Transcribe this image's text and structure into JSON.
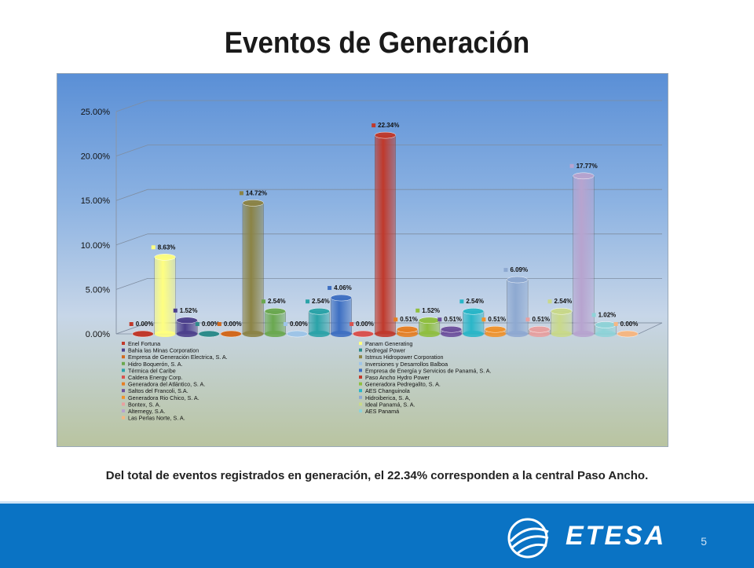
{
  "slide": {
    "title": "Eventos de Generación",
    "caption": "Del total de eventos registrados en generación, el 22.34% corresponden a la central Paso Ancho.",
    "page_number": "5",
    "logo_text": "ETESA"
  },
  "chart_data": {
    "type": "bar",
    "ylim": [
      0,
      25
    ],
    "y_ticks": [
      "0.00%",
      "5.00%",
      "10.00%",
      "15.00%",
      "20.00%",
      "25.00%"
    ],
    "grid": true,
    "legend_position": "bottom",
    "series": [
      {
        "name": "Enel Fortuna",
        "value": 0.0,
        "label": "0.00%",
        "color": "#c0392b"
      },
      {
        "name": "Panam Generating",
        "value": 8.63,
        "label": "8.63%",
        "color": "#ffff80"
      },
      {
        "name": "Bahia las Minas Corporation",
        "value": 1.52,
        "label": "1.52%",
        "color": "#4b3f8c"
      },
      {
        "name": "Pedregal Power",
        "value": 0.0,
        "label": "0.00%",
        "color": "#2e8b8b"
      },
      {
        "name": "Empresa de Generación Electrica, S. A.",
        "value": 0.0,
        "label": "0.00%",
        "color": "#d2691e"
      },
      {
        "name": "Istmus Hidropower Corporation",
        "value": 14.72,
        "label": "14.72%",
        "color": "#8b8345"
      },
      {
        "name": "Hidro Boquerón, S. A.",
        "value": 2.54,
        "label": "2.54%",
        "color": "#6aa84f"
      },
      {
        "name": "Inversiones y Desarrollos Balboa",
        "value": 0.0,
        "label": "0.00%",
        "color": "#9fc5e8"
      },
      {
        "name": "Térmica del Caribe",
        "value": 2.54,
        "label": "2.54%",
        "color": "#2aa3a8"
      },
      {
        "name": "Empresa de Energía y Servicios de Panamá, S. A.",
        "value": 4.06,
        "label": "4.06%",
        "color": "#3d6fc2"
      },
      {
        "name": "Caldera Energy Corp.",
        "value": 0.0,
        "label": "0.00%",
        "color": "#d9534f"
      },
      {
        "name": "Paso Ancho Hydro Power",
        "value": 22.34,
        "label": "22.34%",
        "color": "#c0392b"
      },
      {
        "name": "Generadora del Atlántico, S. A.",
        "value": 0.51,
        "label": "0.51%",
        "color": "#e67e22"
      },
      {
        "name": "Generadora Pedregalito, S. A.",
        "value": 1.52,
        "label": "1.52%",
        "color": "#8fbf3f"
      },
      {
        "name": "Saltos del Francoli, S.A.",
        "value": 0.51,
        "label": "0.51%",
        "color": "#6c4f9c"
      },
      {
        "name": "AES Changuinola",
        "value": 2.54,
        "label": "2.54%",
        "color": "#29b6c8"
      },
      {
        "name": "Generadora Rio Chico, S. A.",
        "value": 0.51,
        "label": "0.51%",
        "color": "#f0922b"
      },
      {
        "name": "Hidroiberica, S. A,",
        "value": 6.09,
        "label": "6.09%",
        "color": "#8ea9d1"
      },
      {
        "name": "Bontex, S. A.",
        "value": 0.51,
        "label": "0.51%",
        "color": "#e8a0a0"
      },
      {
        "name": "Ideal Panamá, S. A.",
        "value": 2.54,
        "label": "2.54%",
        "color": "#c9d98a"
      },
      {
        "name": "Alternegy, S.A.",
        "value": 17.77,
        "label": "17.77%",
        "color": "#b7a4cf"
      },
      {
        "name": "AES Panamá",
        "value": 1.02,
        "label": "1.02%",
        "color": "#8fd3d8"
      },
      {
        "name": "Las Perlas Norte, S. A.",
        "value": 0.0,
        "label": "0.00%",
        "color": "#f5b783"
      }
    ]
  }
}
